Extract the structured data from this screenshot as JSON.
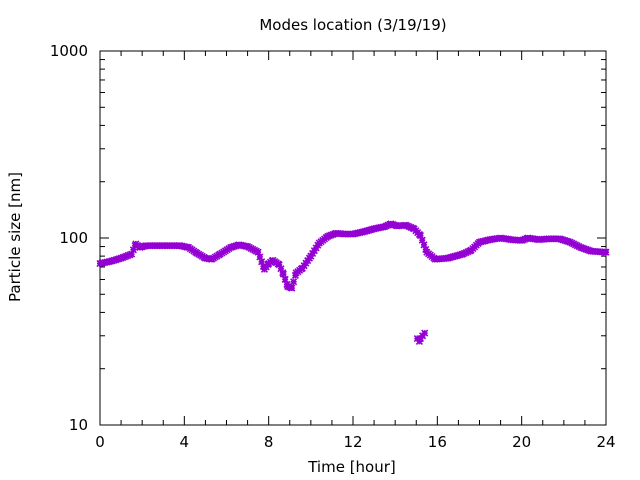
{
  "chart_data": {
    "type": "scatter",
    "title": "Modes location (3/19/19)",
    "xlabel": "Time [hour]",
    "ylabel": "Particle size [nm]",
    "xlim": [
      0,
      24
    ],
    "ylim": [
      10,
      1000
    ],
    "yscale": "log",
    "x_ticks": [
      0,
      4,
      8,
      12,
      16,
      20,
      24
    ],
    "x_tick_labels": [
      "0",
      "4",
      "8",
      "12",
      "16",
      "20",
      "24"
    ],
    "y_ticks": [
      10,
      100,
      1000
    ],
    "y_tick_labels": [
      "10",
      "100",
      "1000"
    ],
    "grid": false,
    "legend": "none",
    "marker_color": "#9400d3",
    "series": [
      {
        "curve": [
          [
            0,
            73
          ],
          [
            0.5,
            75
          ],
          [
            1.0,
            78
          ],
          [
            1.5,
            82
          ],
          [
            1.7,
            93
          ],
          [
            1.9,
            89
          ],
          [
            2.2,
            91
          ],
          [
            3.0,
            91
          ],
          [
            3.8,
            91
          ],
          [
            4.2,
            89
          ],
          [
            4.6,
            83
          ],
          [
            5.0,
            78
          ],
          [
            5.3,
            77
          ],
          [
            5.7,
            82
          ],
          [
            6.2,
            89
          ],
          [
            6.6,
            92
          ],
          [
            7.0,
            90
          ],
          [
            7.5,
            84
          ],
          [
            7.8,
            68
          ],
          [
            8.0,
            73
          ],
          [
            8.2,
            76
          ],
          [
            8.5,
            72
          ],
          [
            8.7,
            64
          ],
          [
            8.9,
            55
          ],
          [
            9.1,
            54
          ],
          [
            9.3,
            65
          ],
          [
            9.6,
            69
          ],
          [
            10.0,
            80
          ],
          [
            10.4,
            94
          ],
          [
            10.8,
            102
          ],
          [
            11.2,
            106
          ],
          [
            11.6,
            105
          ],
          [
            12.0,
            105
          ],
          [
            12.5,
            108
          ],
          [
            13.0,
            112
          ],
          [
            13.5,
            115
          ],
          [
            13.8,
            119
          ],
          [
            14.1,
            116
          ],
          [
            14.5,
            117
          ],
          [
            14.9,
            112
          ],
          [
            15.2,
            103
          ],
          [
            15.5,
            84
          ],
          [
            15.9,
            77
          ],
          [
            16.5,
            78
          ],
          [
            17.2,
            82
          ],
          [
            17.6,
            86
          ],
          [
            18.0,
            95
          ],
          [
            18.5,
            98
          ],
          [
            19.0,
            100
          ],
          [
            19.5,
            98
          ],
          [
            20.0,
            97
          ],
          [
            20.3,
            100
          ],
          [
            20.8,
            98
          ],
          [
            21.3,
            99
          ],
          [
            21.8,
            99
          ],
          [
            22.3,
            95
          ],
          [
            22.8,
            89
          ],
          [
            23.3,
            85
          ],
          [
            24.0,
            84
          ]
        ],
        "cluster": [
          [
            15.05,
            29
          ],
          [
            15.15,
            28
          ],
          [
            15.2,
            29
          ],
          [
            15.3,
            30
          ],
          [
            15.4,
            31
          ]
        ]
      }
    ]
  }
}
